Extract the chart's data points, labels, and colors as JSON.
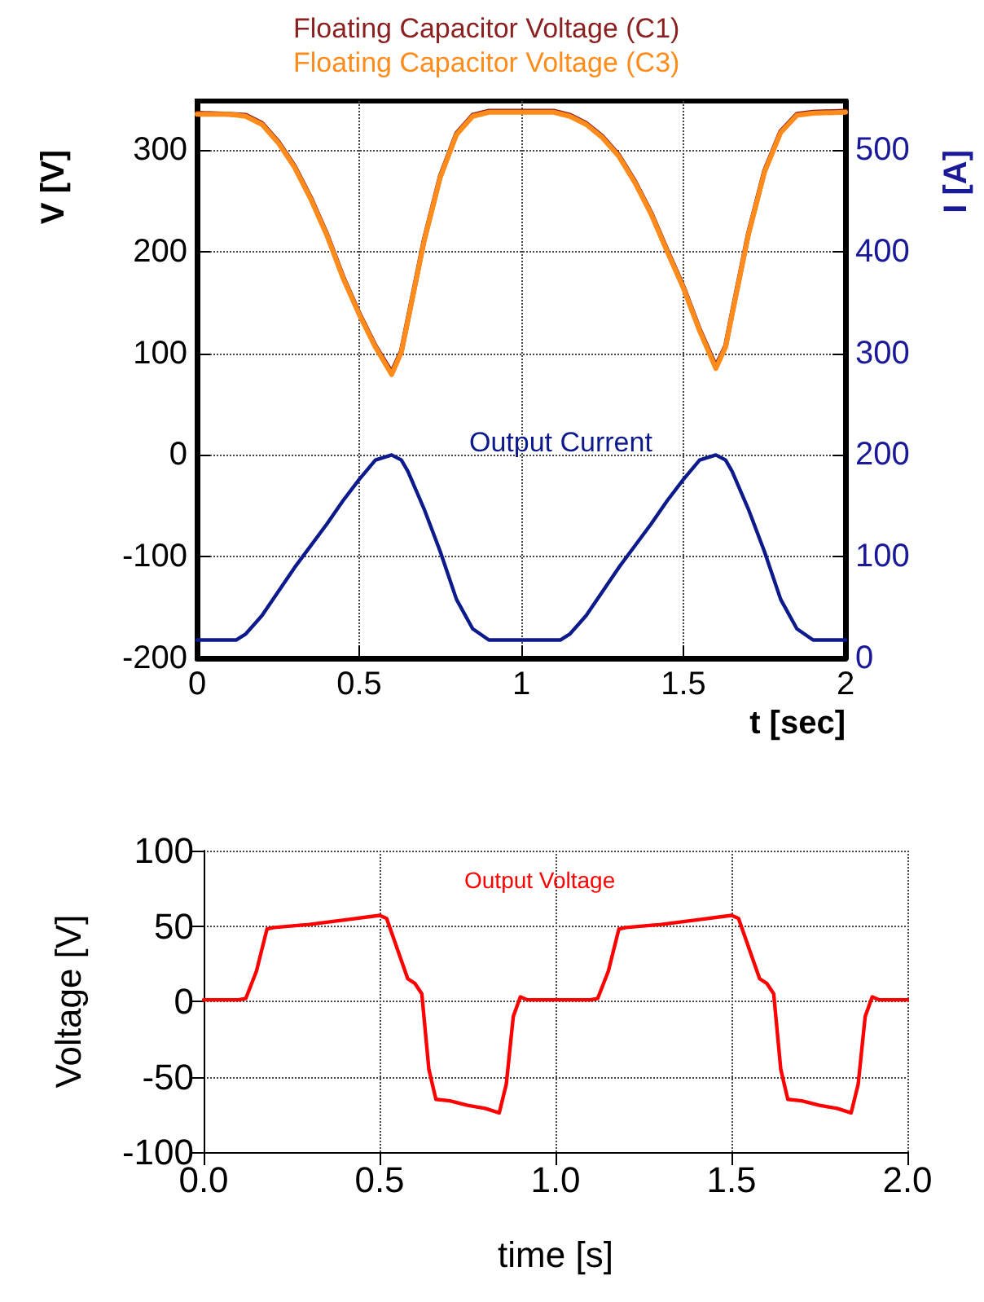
{
  "chart_data": [
    {
      "type": "line",
      "xlabel": "t [sec]",
      "ylabel": "V [V]",
      "y2label": "I [A]",
      "legend": "top",
      "grid": true,
      "line_style": "solid",
      "marker": "none",
      "xlim": [
        0,
        2
      ],
      "xticks": [
        0,
        0.5,
        1,
        1.5,
        2
      ],
      "ylim": [
        -200,
        348
      ],
      "yticks": [
        -200,
        -100,
        0,
        100,
        200,
        300
      ],
      "y2lim": [
        0,
        548
      ],
      "y2ticks": [
        0,
        100,
        200,
        300,
        400,
        500
      ],
      "series": [
        {
          "name": "Floating Capacitor Voltage (C1)",
          "color": "#8b2020",
          "x": [
            0,
            0.1,
            0.15,
            0.2,
            0.25,
            0.3,
            0.35,
            0.4,
            0.45,
            0.5,
            0.55,
            0.6,
            0.63,
            0.65,
            0.7,
            0.75,
            0.8,
            0.85,
            0.9,
            1,
            1.1,
            1.15,
            1.2,
            1.25,
            1.3,
            1.35,
            1.4,
            1.45,
            1.5,
            1.55,
            1.6,
            1.63,
            1.65,
            1.7,
            1.75,
            1.8,
            1.85,
            1.9,
            2
          ],
          "values": [
            336,
            335,
            334,
            326,
            308,
            284,
            253,
            217,
            175,
            139,
            107,
            81,
            102,
            133,
            211,
            274,
            316,
            334,
            338,
            338,
            338,
            334,
            326,
            313,
            295,
            269,
            238,
            201,
            165,
            123,
            87,
            107,
            139,
            217,
            279,
            318,
            335,
            337,
            338
          ]
        },
        {
          "name": "Floating Capacitor Voltage (C3)",
          "color": "#ff8c1a",
          "x": [
            0,
            0.1,
            0.15,
            0.2,
            0.25,
            0.3,
            0.35,
            0.4,
            0.45,
            0.5,
            0.55,
            0.6,
            0.63,
            0.65,
            0.7,
            0.75,
            0.8,
            0.85,
            0.9,
            1,
            1.1,
            1.15,
            1.2,
            1.25,
            1.3,
            1.35,
            1.4,
            1.45,
            1.5,
            1.55,
            1.6,
            1.63,
            1.65,
            1.7,
            1.75,
            1.8,
            1.85,
            1.9,
            2
          ],
          "values": [
            335,
            335,
            333,
            325,
            307,
            283,
            252,
            216,
            174,
            138,
            106,
            79,
            101,
            132,
            210,
            273,
            315,
            333,
            337,
            337,
            337,
            333,
            325,
            312,
            294,
            268,
            237,
            200,
            164,
            122,
            85,
            106,
            138,
            216,
            278,
            317,
            334,
            336,
            337
          ]
        },
        {
          "name": "Output Current",
          "color": "#0d1a8c",
          "axis": "y2",
          "x": [
            0,
            0.12,
            0.15,
            0.2,
            0.3,
            0.4,
            0.45,
            0.5,
            0.55,
            0.6,
            0.63,
            0.65,
            0.7,
            0.75,
            0.8,
            0.85,
            0.9,
            1.1,
            1.12,
            1.15,
            1.2,
            1.3,
            1.4,
            1.45,
            1.5,
            1.55,
            1.6,
            1.63,
            1.65,
            1.7,
            1.75,
            1.8,
            1.85,
            1.9,
            2
          ],
          "values": [
            18,
            18,
            24,
            42,
            89,
            132,
            155,
            176,
            195,
            200,
            195,
            184,
            147,
            105,
            58,
            29,
            18,
            18,
            18,
            24,
            42,
            89,
            132,
            155,
            176,
            195,
            200,
            195,
            184,
            147,
            105,
            58,
            29,
            18,
            18
          ]
        }
      ]
    },
    {
      "type": "line",
      "xlabel": "time [s]",
      "ylabel": "Voltage [V]",
      "legend": "top",
      "grid": true,
      "line_style": "solid",
      "marker": "none",
      "xlim": [
        0,
        2
      ],
      "xticks": [
        {
          "value": 0,
          "label": "0.0"
        },
        {
          "value": 0.5,
          "label": "0.5"
        },
        {
          "value": 1,
          "label": "1.0"
        },
        {
          "value": 1.5,
          "label": "1.5"
        },
        {
          "value": 2,
          "label": "2.0"
        }
      ],
      "ylim": [
        -100,
        100
      ],
      "yticks": [
        -100,
        -50,
        0,
        50,
        100
      ],
      "series": [
        {
          "name": "Output Voltage",
          "color": "#ff0000",
          "x": [
            0,
            0.1,
            0.12,
            0.15,
            0.18,
            0.2,
            0.3,
            0.4,
            0.5,
            0.52,
            0.55,
            0.58,
            0.6,
            0.62,
            0.64,
            0.66,
            0.7,
            0.75,
            0.8,
            0.84,
            0.86,
            0.88,
            0.9,
            0.92,
            1,
            1.1,
            1.12,
            1.15,
            1.18,
            1.2,
            1.3,
            1.4,
            1.5,
            1.52,
            1.55,
            1.58,
            1.6,
            1.62,
            1.64,
            1.66,
            1.7,
            1.75,
            1.8,
            1.84,
            1.86,
            1.88,
            1.9,
            1.92,
            2
          ],
          "values": [
            1,
            1,
            2,
            20,
            48,
            49,
            51,
            54,
            57,
            55,
            35,
            15,
            12,
            5,
            -45,
            -65,
            -66,
            -69,
            -71,
            -74,
            -55,
            -10,
            3,
            1,
            1,
            1,
            2,
            20,
            48,
            49,
            51,
            54,
            57,
            55,
            35,
            15,
            12,
            5,
            -45,
            -65,
            -66,
            -69,
            -71,
            -74,
            -55,
            -10,
            3,
            1,
            1
          ]
        }
      ]
    }
  ]
}
